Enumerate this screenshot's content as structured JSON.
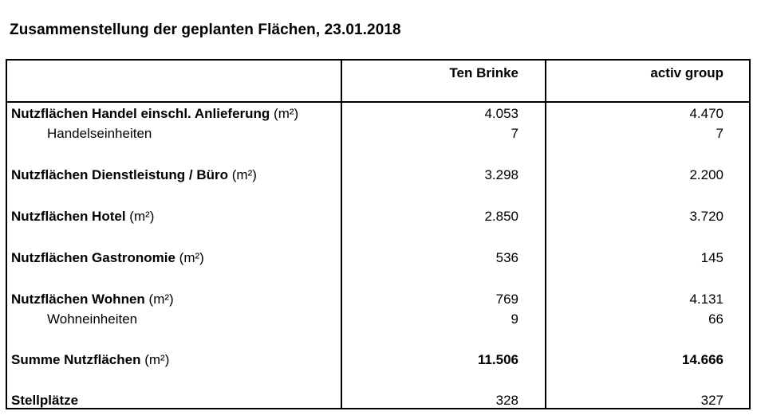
{
  "title": "Zusammenstellung der geplanten Flächen, 23.01.2018",
  "columns": [
    "Ten Brinke",
    "activ group"
  ],
  "rows": [
    {
      "label": "Nutzflächen Handel einschl. Anlieferung",
      "unit": "(m²)",
      "values": [
        "4.053",
        "4.470"
      ]
    },
    {
      "label": "Handelseinheiten",
      "values": [
        "7",
        "7"
      ]
    },
    {
      "label": "Nutzflächen Dienstleistung / Büro",
      "unit": "(m²)",
      "values": [
        "3.298",
        "2.200"
      ]
    },
    {
      "label": "Nutzflächen Hotel",
      "unit": "(m²)",
      "values": [
        "2.850",
        "3.720"
      ]
    },
    {
      "label": "Nutzflächen Gastronomie",
      "unit": "(m²)",
      "values": [
        "536",
        "145"
      ]
    },
    {
      "label": "Nutzflächen Wohnen",
      "unit": "(m²)",
      "values": [
        "769",
        "4.131"
      ]
    },
    {
      "label": "Wohneinheiten",
      "values": [
        "9",
        "66"
      ]
    },
    {
      "label": "Summe Nutzflächen",
      "unit": "(m²)",
      "values": [
        "11.506",
        "14.666"
      ]
    },
    {
      "label": "Stellplätze",
      "values": [
        "328",
        "327"
      ]
    }
  ]
}
